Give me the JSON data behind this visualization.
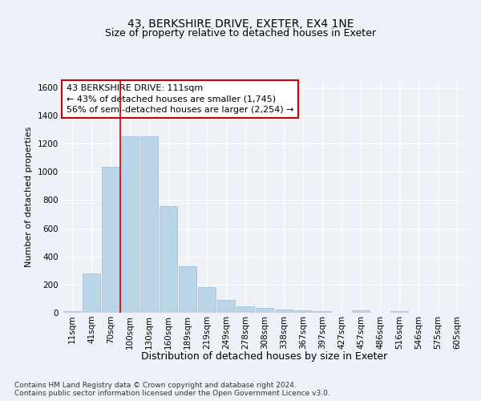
{
  "title": "43, BERKSHIRE DRIVE, EXETER, EX4 1NE",
  "subtitle": "Size of property relative to detached houses in Exeter",
  "xlabel": "Distribution of detached houses by size in Exeter",
  "ylabel": "Number of detached properties",
  "bin_labels": [
    "11sqm",
    "41sqm",
    "70sqm",
    "100sqm",
    "130sqm",
    "160sqm",
    "189sqm",
    "219sqm",
    "249sqm",
    "278sqm",
    "308sqm",
    "338sqm",
    "367sqm",
    "397sqm",
    "427sqm",
    "457sqm",
    "486sqm",
    "516sqm",
    "546sqm",
    "575sqm",
    "605sqm"
  ],
  "bar_heights": [
    10,
    280,
    1035,
    1250,
    1250,
    755,
    330,
    180,
    90,
    48,
    32,
    22,
    18,
    10,
    0,
    18,
    0,
    12,
    0,
    0,
    0
  ],
  "bar_color": "#bad4e8",
  "bar_edgecolor": "#a0bcd8",
  "vline_x_index": 3,
  "vline_color": "#cc0000",
  "annotation_text": "43 BERKSHIRE DRIVE: 111sqm\n← 43% of detached houses are smaller (1,745)\n56% of semi-detached houses are larger (2,254) →",
  "annotation_box_facecolor": "#ffffff",
  "annotation_box_edgecolor": "#cc0000",
  "ylim": [
    0,
    1650
  ],
  "yticks": [
    0,
    200,
    400,
    600,
    800,
    1000,
    1200,
    1400,
    1600
  ],
  "footer_text": "Contains HM Land Registry data © Crown copyright and database right 2024.\nContains public sector information licensed under the Open Government Licence v3.0.",
  "bg_color": "#eef2f8",
  "plot_bg_color": "#eef2f8",
  "title_fontsize": 10,
  "subtitle_fontsize": 9,
  "xlabel_fontsize": 9,
  "ylabel_fontsize": 8,
  "tick_fontsize": 7.5,
  "annotation_fontsize": 8,
  "footer_fontsize": 6.5
}
